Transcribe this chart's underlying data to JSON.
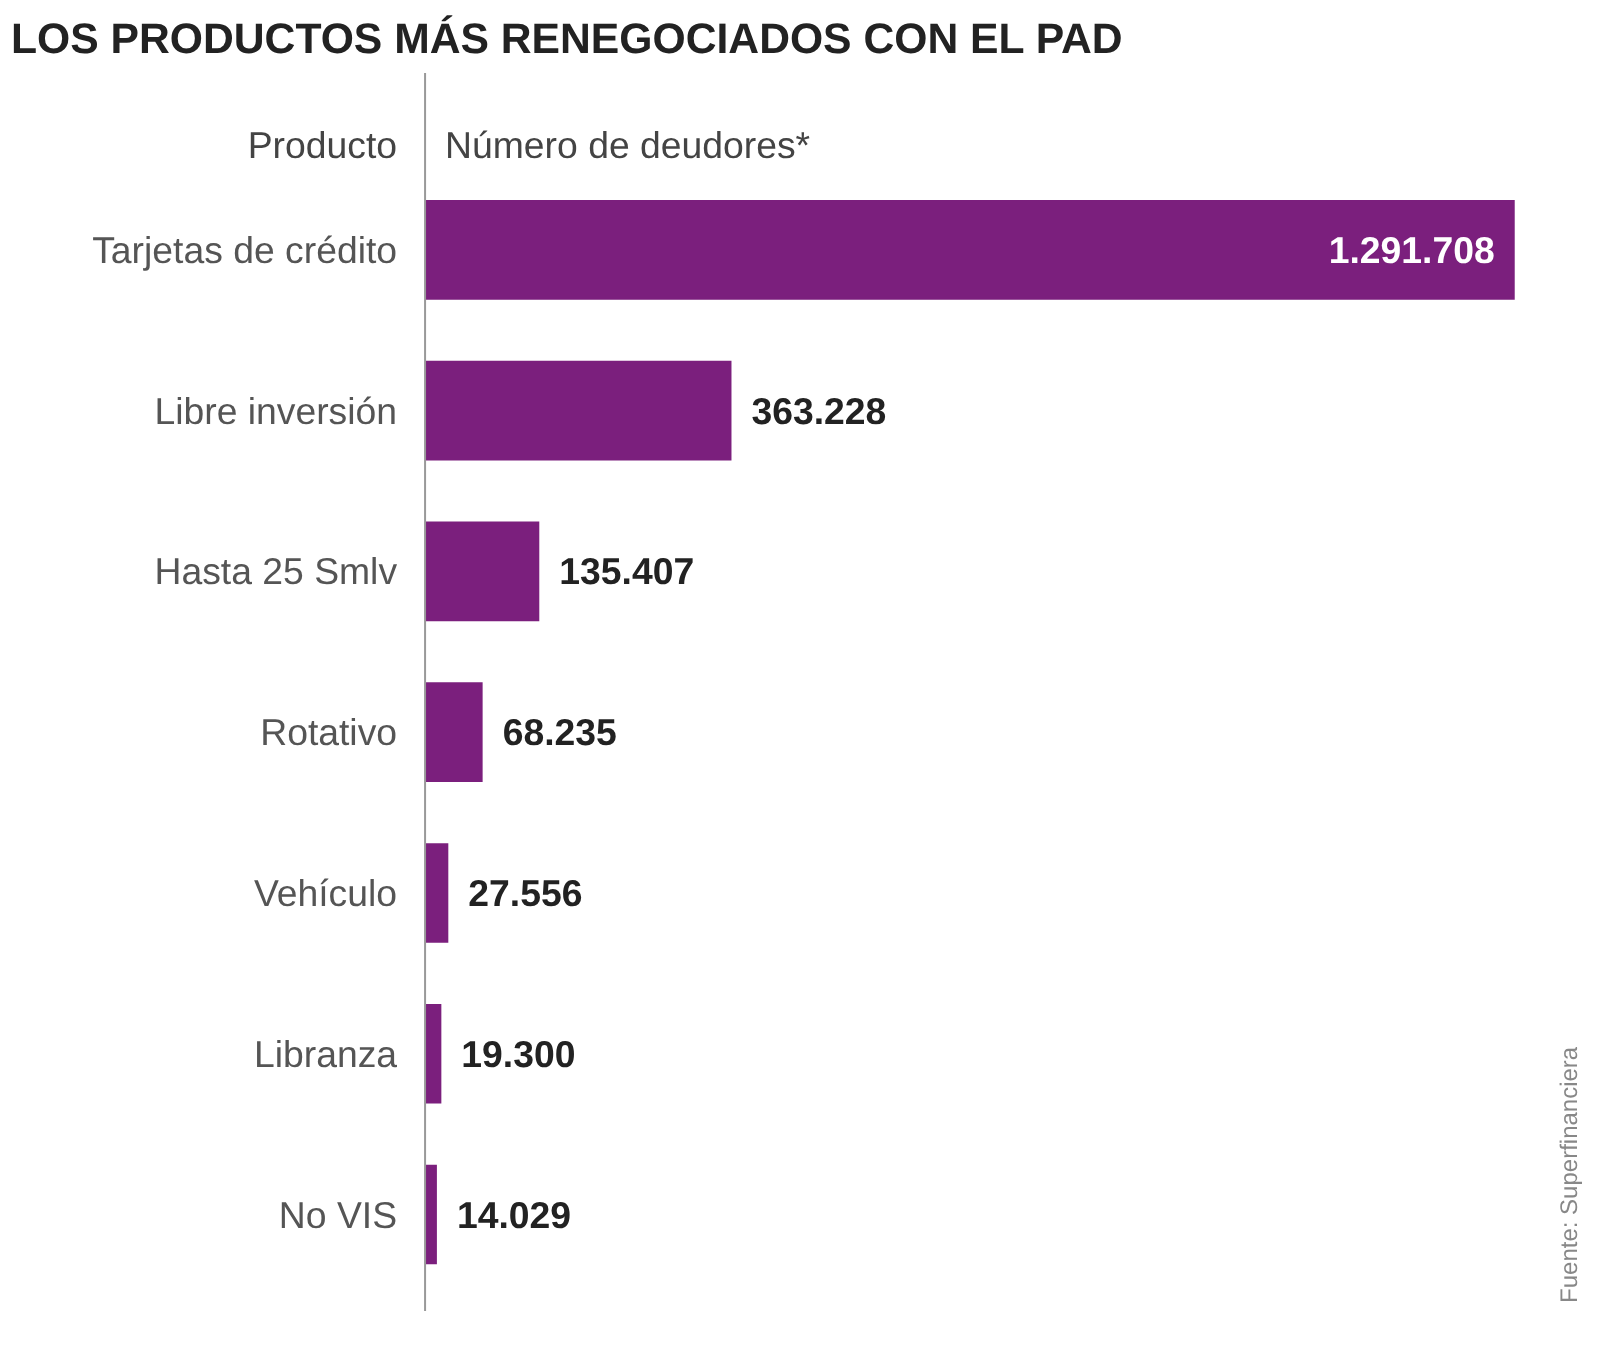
{
  "chart_data": {
    "type": "bar",
    "orientation": "horizontal",
    "title": "LOS PRODUCTOS MÁS RENEGOCIADOS CON EL PAD",
    "ylabel": "Producto",
    "xlabel": "Número de deudores*",
    "categories": [
      "Tarjetas de crédito",
      "Libre inversión",
      "Hasta 25 Smlv",
      "Rotativo",
      "Vehículo",
      "Libranza",
      "No VIS"
    ],
    "values": [
      1291708,
      363228,
      135407,
      68235,
      27556,
      19300,
      14029
    ],
    "value_labels": [
      "1.291.708",
      "363.228",
      "135.407",
      "68.235",
      "27.556",
      "19.300",
      "14.029"
    ],
    "color": "#7b1f7d",
    "annotations": [
      "Fuente: Superfinanciera"
    ]
  }
}
